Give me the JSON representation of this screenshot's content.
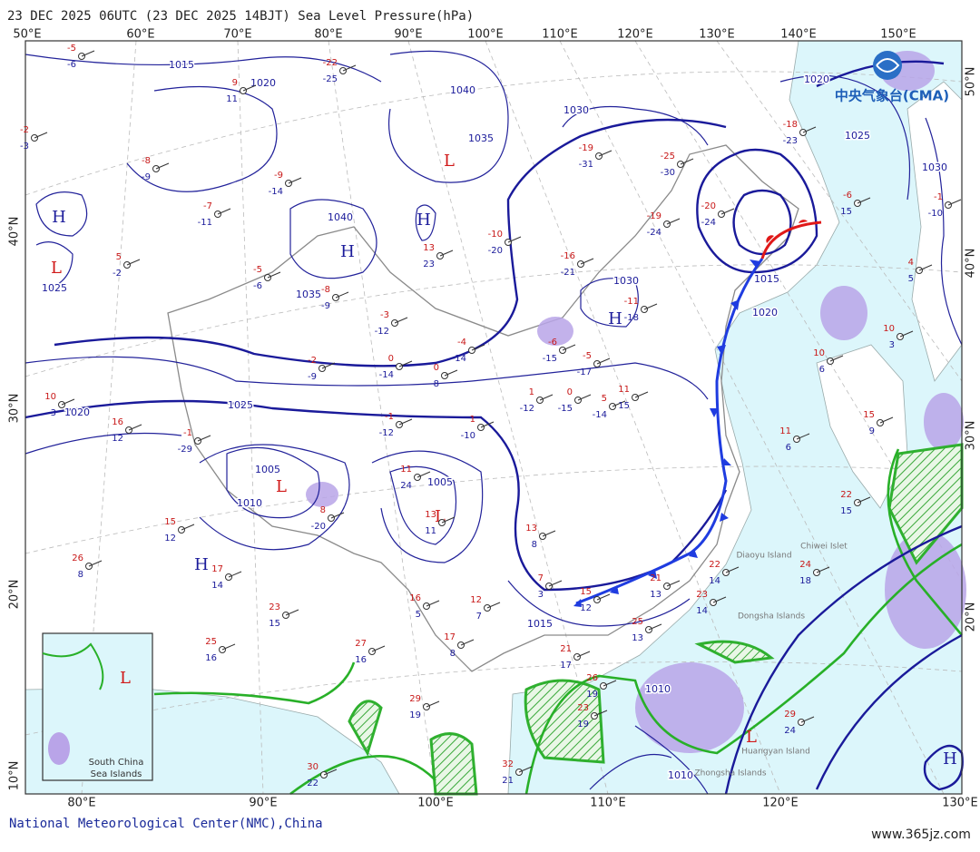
{
  "header": {
    "title": "23 DEC 2025 06UTC (23 DEC 2025 14BJT) Sea Level Pressure(hPa)"
  },
  "top_longitudes": [
    "50°E",
    "60°E",
    "70°E",
    "80°E",
    "90°E",
    "100°E",
    "110°E",
    "120°E",
    "130°E",
    "140°E",
    "150°E"
  ],
  "bottom_longitudes": [
    "80°E",
    "90°E",
    "100°E",
    "110°E",
    "120°E",
    "130°E"
  ],
  "left_latitudes": [
    "40°N",
    "30°N",
    "20°N",
    "10°N"
  ],
  "right_latitudes": [
    "50°N",
    "40°N",
    "30°N",
    "20°N"
  ],
  "isobar_labels": [
    "1015",
    "1020",
    "1040",
    "1035",
    "1030",
    "1025",
    "1020",
    "1030",
    "1040",
    "1035",
    "1025",
    "1020",
    "1025",
    "1005",
    "1010",
    "1005",
    "1030",
    "1015",
    "1020",
    "1015",
    "1010",
    "1010"
  ],
  "pressure_centers": [
    "H",
    "L",
    "H",
    "H",
    "L",
    "H",
    "L",
    "L",
    "H",
    "L",
    "H",
    "L"
  ],
  "place_labels": [
    "Diaoyu Island",
    "Chiwei Islet",
    "Dongsha Islands",
    "Huangyan Island",
    "Zhongsha Islands"
  ],
  "inset": {
    "title_line1": "South China",
    "title_line2": "Sea Islands"
  },
  "logo": "中央气象台(CMA)",
  "footer": "National Meteorological Center(NMC),China",
  "watermark": "www.365jz.com",
  "stations": [
    {
      "temperature": -5,
      "dew_point": -6
    },
    {
      "temperature": 9,
      "dew_point": 11
    },
    {
      "temperature": -22,
      "dew_point": -25
    },
    {
      "temperature": -2,
      "dew_point": -3
    },
    {
      "temperature": -8,
      "dew_point": -9
    },
    {
      "temperature": -9,
      "dew_point": -14
    },
    {
      "temperature": -7,
      "dew_point": -11
    },
    {
      "temperature": 5,
      "dew_point": -2
    },
    {
      "temperature": -5,
      "dew_point": -6
    },
    {
      "temperature": -8,
      "dew_point": -9
    },
    {
      "temperature": -3,
      "dew_point": -12
    },
    {
      "temperature": 13,
      "dew_point": 23
    },
    {
      "temperature": -10,
      "dew_point": -20
    },
    {
      "temperature": -16,
      "dew_point": -21
    },
    {
      "temperature": -19,
      "dew_point": -31
    },
    {
      "temperature": -25,
      "dew_point": -30
    },
    {
      "temperature": -20,
      "dew_point": -24
    },
    {
      "temperature": -19,
      "dew_point": -24
    },
    {
      "temperature": -11,
      "dew_point": -18
    },
    {
      "temperature": -18,
      "dew_point": -23
    },
    {
      "temperature": -1,
      "dew_point": -10
    },
    {
      "temperature": -4,
      "dew_point": -14
    },
    {
      "temperature": -6,
      "dew_point": -15
    },
    {
      "temperature": -5,
      "dew_point": -17
    },
    {
      "temperature": 0,
      "dew_point": -14
    },
    {
      "temperature": 0,
      "dew_point": -8
    },
    {
      "temperature": -2,
      "dew_point": -9
    },
    {
      "temperature": 10,
      "dew_point": 3
    },
    {
      "temperature": 16,
      "dew_point": 12
    },
    {
      "temperature": -1,
      "dew_point": -29
    },
    {
      "temperature": -1,
      "dew_point": -12
    },
    {
      "temperature": 1,
      "dew_point": -10
    },
    {
      "temperature": 1,
      "dew_point": -12
    },
    {
      "temperature": 0,
      "dew_point": -15
    },
    {
      "temperature": 5,
      "dew_point": -14
    },
    {
      "temperature": 11,
      "dew_point": 15
    },
    {
      "temperature": 11,
      "dew_point": 24
    },
    {
      "temperature": 13,
      "dew_point": 11
    },
    {
      "temperature": 13,
      "dew_point": 8
    },
    {
      "temperature": 8,
      "dew_point": -20
    },
    {
      "temperature": 15,
      "dew_point": 12
    },
    {
      "temperature": 26,
      "dew_point": 8
    },
    {
      "temperature": 17,
      "dew_point": 14
    },
    {
      "temperature": 23,
      "dew_point": 15
    },
    {
      "temperature": 16,
      "dew_point": 5
    },
    {
      "temperature": 12,
      "dew_point": 7
    },
    {
      "temperature": 17,
      "dew_point": 8
    },
    {
      "temperature": 27,
      "dew_point": 16
    },
    {
      "temperature": 25,
      "dew_point": 16
    },
    {
      "temperature": 29,
      "dew_point": 19
    },
    {
      "temperature": 32,
      "dew_point": 21
    },
    {
      "temperature": 30,
      "dew_point": 22
    },
    {
      "temperature": 21,
      "dew_point": 17
    },
    {
      "temperature": 15,
      "dew_point": 12
    },
    {
      "temperature": 7,
      "dew_point": 3
    },
    {
      "temperature": 21,
      "dew_point": 13
    },
    {
      "temperature": 22,
      "dew_point": 14
    },
    {
      "temperature": 23,
      "dew_point": 14
    },
    {
      "temperature": 25,
      "dew_point": 13
    },
    {
      "temperature": 26,
      "dew_point": 19
    },
    {
      "temperature": 23,
      "dew_point": 19
    },
    {
      "temperature": 29,
      "dew_point": 24
    },
    {
      "temperature": 24,
      "dew_point": 18
    },
    {
      "temperature": 22,
      "dew_point": 15
    },
    {
      "temperature": 15,
      "dew_point": 9
    },
    {
      "temperature": 11,
      "dew_point": 6
    },
    {
      "temperature": 10,
      "dew_point": 6
    },
    {
      "temperature": 10,
      "dew_point": 3
    },
    {
      "temperature": 4,
      "dew_point": 5
    },
    {
      "temperature": -6,
      "dew_point": 15
    }
  ]
}
